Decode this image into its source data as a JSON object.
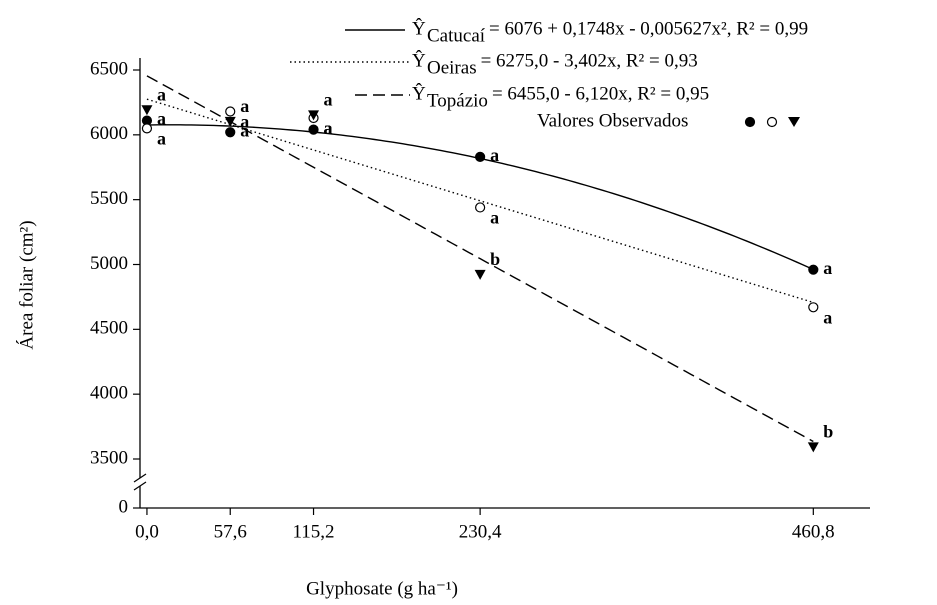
{
  "chart_data": {
    "type": "scatter",
    "x_label": "Glyphosate (g ha⁻¹)",
    "y_label": "Área foliar (cm²)",
    "xlim": [
      -4.8,
      500
    ],
    "xticks": [
      {
        "value": 0,
        "label": "0,0"
      },
      {
        "value": 57.6,
        "label": "57,6"
      },
      {
        "value": 115.2,
        "label": "115,2"
      },
      {
        "value": 230.4,
        "label": "230,4"
      },
      {
        "value": 460.8,
        "label": "460,8"
      }
    ],
    "ylim": [
      3500,
      6500
    ],
    "yticks": [
      0,
      3500,
      4000,
      4500,
      5000,
      5500,
      6000,
      6500
    ],
    "y_axis_break": true,
    "fit_symbol": "Ŷ",
    "observed_label": "Valores Observados",
    "x": [
      0,
      57.6,
      115.2,
      230.4,
      460.8
    ],
    "series": [
      {
        "name": "Catucaí",
        "equation": "= 6076 + 0,1748x - 0,005627x², R² = 0,99",
        "coefficients": [
          6076,
          0.1748,
          -0.005627
        ],
        "dash": "solid",
        "marker": "filled-circle",
        "color": "#000000",
        "values": [
          6110,
          6020,
          6040,
          5830,
          4960
        ],
        "letters": [
          "a",
          "a",
          "a",
          "a",
          "a"
        ]
      },
      {
        "name": "Oeiras",
        "equation": "= 6275,0 - 3,402x, R² = 0,93",
        "coefficients": [
          6275.0,
          -3.402
        ],
        "dash": "dotted",
        "marker": "open-circle",
        "color": "#000000",
        "values": [
          6050,
          6180,
          6130,
          5440,
          4670
        ],
        "letters": [
          "a",
          "a",
          "a",
          "a",
          "a"
        ]
      },
      {
        "name": "Topázio",
        "equation": "= 6455,0 - 6,120x, R² = 0,95",
        "coefficients": [
          6455.0,
          -6.12
        ],
        "dash": "dashed",
        "marker": "triangle",
        "color": "#000000",
        "values": [
          6190,
          6100,
          6150,
          4920,
          3590
        ],
        "letters": [
          "a",
          "a",
          "a",
          "b",
          "b"
        ]
      }
    ]
  }
}
